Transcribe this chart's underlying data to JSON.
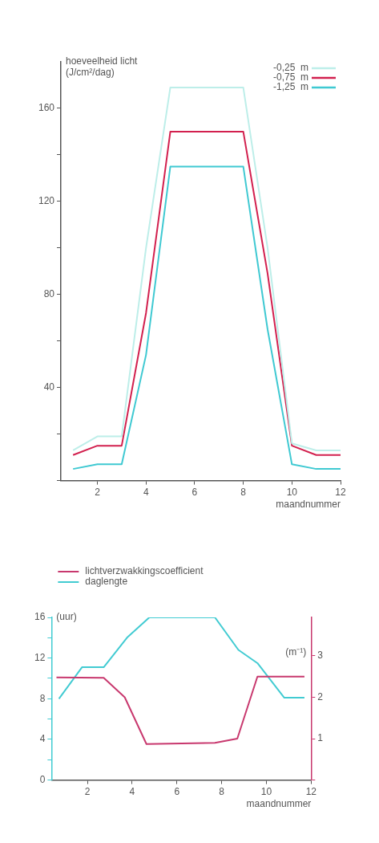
{
  "chart_data": [
    {
      "type": "line",
      "ylabel": "hoeveelheid licht\n(J/cm²/dag)",
      "xlabel": "maandnummer",
      "xlim": [
        0.5,
        12
      ],
      "xticks": [
        2,
        4,
        6,
        8,
        10,
        12
      ],
      "ylim": [
        0,
        180
      ],
      "yticks": [
        {
          "value": 0,
          "label": null
        },
        {
          "value": 20,
          "label": null
        },
        40,
        {
          "value": 60,
          "label": null
        },
        80,
        {
          "value": 100,
          "label": null
        },
        120,
        {
          "value": 140,
          "label": null
        },
        160
      ],
      "grid": false,
      "legend": "top right",
      "marker": "none",
      "line_style": "solid",
      "x": [
        1,
        2,
        3,
        4,
        5,
        8,
        9,
        10,
        11,
        12
      ],
      "series": [
        {
          "name": "-0,25  m",
          "color": "#bdeee9",
          "values": [
            13,
            19,
            19,
            100,
            169,
            169,
            100,
            16,
            13,
            13
          ]
        },
        {
          "name": "-0,75  m",
          "color": "#d2204e",
          "values": [
            11,
            15,
            15,
            72,
            150,
            150,
            89,
            15,
            11,
            11
          ]
        },
        {
          "name": "-1,25  m",
          "color": "#3fc9d2",
          "values": [
            5,
            7,
            7,
            54,
            135,
            135,
            65,
            7,
            5,
            5
          ]
        }
      ]
    },
    {
      "type": "line",
      "ylabel": "(uur)",
      "y2label": "(m⁻¹)",
      "xlabel": "maandnummer",
      "xlim": [
        0.4,
        12
      ],
      "xticks": [
        2,
        4,
        6,
        8,
        10,
        12
      ],
      "ylim": [
        0,
        16
      ],
      "yticks": [
        0,
        {
          "value": 2,
          "label": null
        },
        4,
        {
          "value": 6,
          "label": null
        },
        8,
        {
          "value": 10,
          "label": null
        },
        12,
        {
          "value": 14,
          "label": null
        },
        16
      ],
      "y2lim": [
        0,
        3.93
      ],
      "y2ticks": [
        {
          "value": 0,
          "label": null
        },
        1,
        2,
        3
      ],
      "grid": false,
      "legend": "top left",
      "marker": "none",
      "line_style": "solid",
      "series": [
        {
          "name": "lichtverzwakkingscoefficient",
          "color": "#c8386e",
          "axis": "y2",
          "x": [
            0.62,
            2.73,
            3.67,
            4.64,
            7.7,
            8.7,
            9.6,
            11.7
          ],
          "values": [
            2.48,
            2.47,
            2.0,
            0.87,
            0.9,
            1.0,
            2.5,
            2.5
          ]
        },
        {
          "name": "daglengte",
          "color": "#42cbd2",
          "x": [
            0.73,
            1.76,
            2.73,
            3.77,
            4.77,
            7.7,
            8.75,
            9.6,
            10.8,
            11.7
          ],
          "values": [
            8.0,
            11.1,
            11.1,
            14.0,
            16.0,
            16.0,
            12.8,
            11.5,
            8.1,
            8.1
          ]
        }
      ]
    }
  ]
}
